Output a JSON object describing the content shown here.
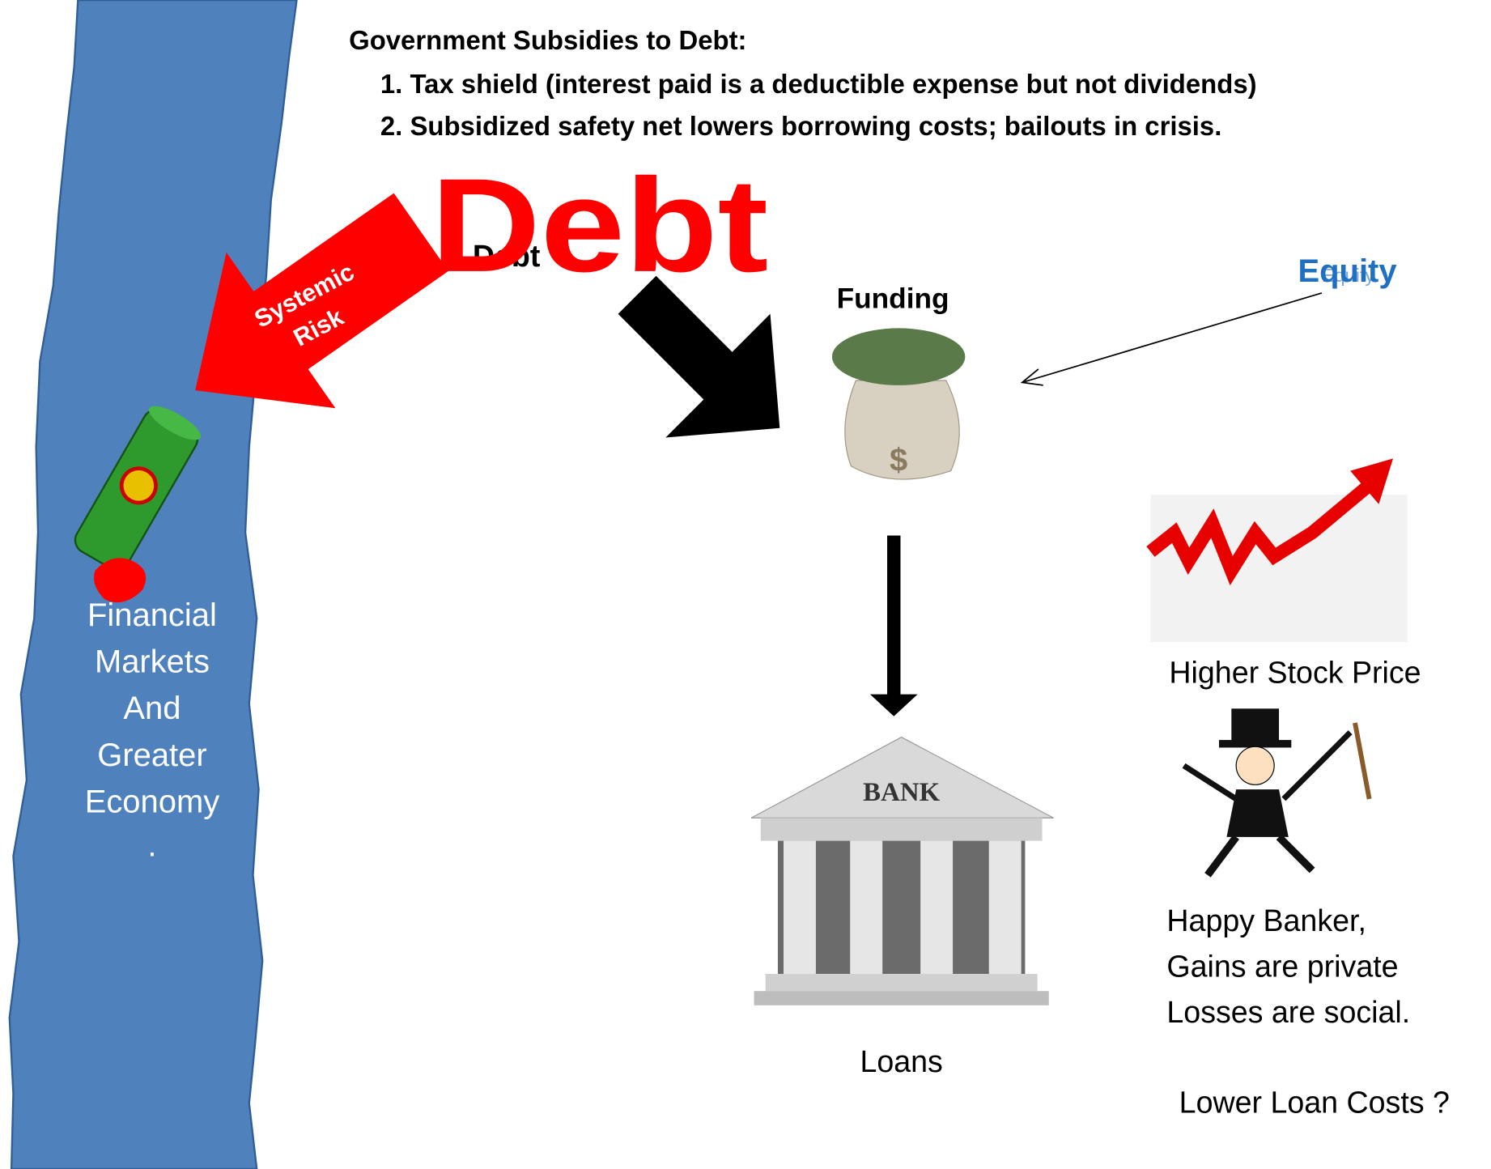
{
  "header": {
    "title": "Government Subsidies to Debt:",
    "points": [
      "1. Tax shield (interest paid is a deductible expense but not dividends)",
      "2. Subsidized safety net lowers borrowing costs; bailouts in crisis."
    ]
  },
  "debt": {
    "big": "Debt",
    "small": "Debt"
  },
  "equity": {
    "label": "Equity",
    "small": "Equity"
  },
  "funding": "Funding",
  "systemic_risk": [
    "Systemic",
    "Risk"
  ],
  "economy": [
    "Financial",
    "Markets",
    "And",
    "Greater",
    "Economy",
    "."
  ],
  "bag_symbol": "$",
  "bank_sign": "BANK",
  "loans": "Loans",
  "stock": "Higher Stock Price",
  "banker": [
    "Happy Banker,",
    "Gains are private",
    "Losses are social."
  ],
  "question": "Lower Loan Costs ?"
}
